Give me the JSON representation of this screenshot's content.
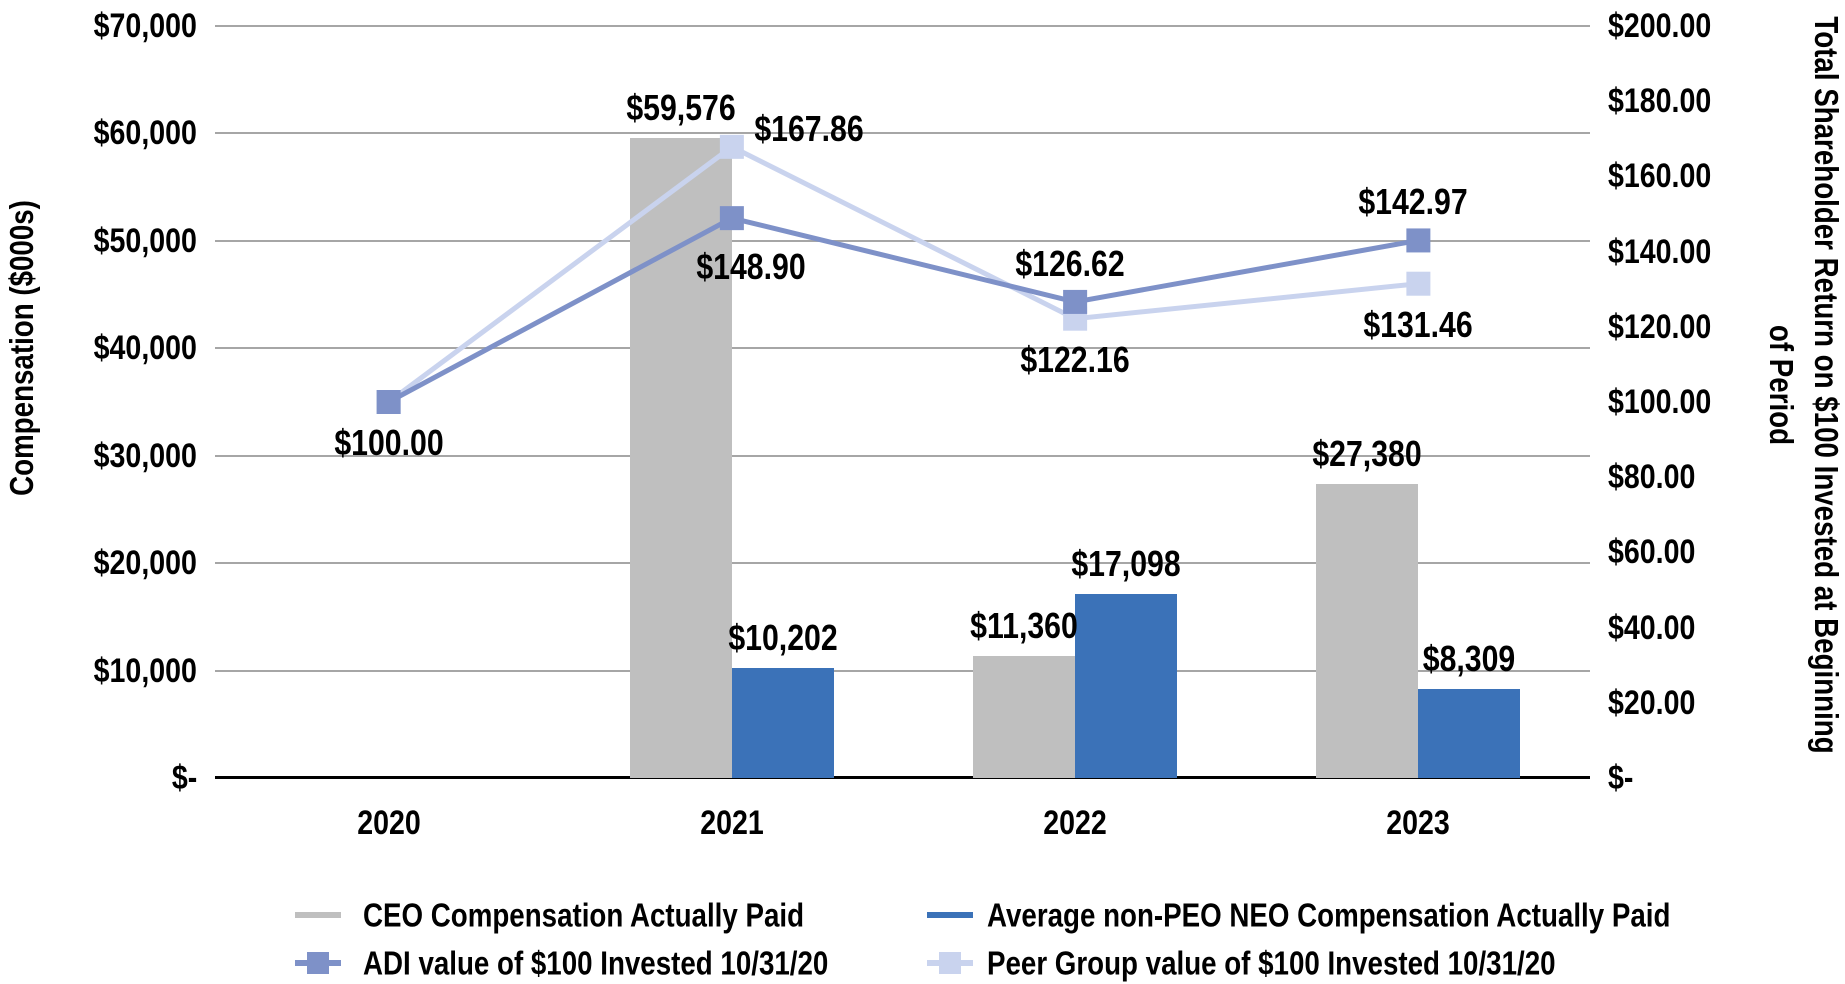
{
  "chart_data": {
    "type": "combo-bar-line",
    "categories": [
      "2020",
      "2021",
      "2022",
      "2023"
    ],
    "bar_series": [
      {
        "name": "CEO Compensation Actually Paid",
        "color": "#BFBFBF",
        "values": [
          null,
          59576,
          11360,
          27380
        ],
        "labels": [
          "",
          "$59,576",
          "$11,360",
          "$27,380"
        ]
      },
      {
        "name": "Average non-PEO NEO Compensation Actually Paid",
        "color": "#3B72B8",
        "values": [
          null,
          10202,
          17098,
          8309
        ],
        "labels": [
          "",
          "$10,202",
          "$17,098",
          "$8,309"
        ]
      }
    ],
    "line_series": [
      {
        "name": "Peer Group value of $100 Invested 10/31/20",
        "color": "#C9D3EE",
        "values": [
          100.0,
          167.86,
          122.16,
          131.46
        ],
        "labels": [
          "",
          "$167.86",
          "$122.16",
          "$131.46"
        ],
        "label_pos": [
          null,
          "above-right",
          "below",
          "below"
        ]
      },
      {
        "name": "ADI value of $100 Invested 10/31/20",
        "color": "#7E91C8",
        "values": [
          100.0,
          148.9,
          126.62,
          142.97
        ],
        "labels": [
          "$100.00",
          "$148.90",
          "$126.62",
          "$142.97"
        ],
        "label_pos": [
          "below",
          "below-right",
          "above",
          "above"
        ]
      }
    ],
    "left_axis": {
      "title": "Compensation ($000s)",
      "max": 70000,
      "step": 10000,
      "ticks": [
        "$70,000",
        "$60,000",
        "$50,000",
        "$40,000",
        "$30,000",
        "$20,000",
        "$10,000",
        "$-"
      ]
    },
    "right_axis": {
      "title_line1": "Total Shareholder Return on $100 Invested at Beginning",
      "title_line2": "of Period",
      "max": 200,
      "step": 20,
      "ticks": [
        "$200.00",
        "$180.00",
        "$160.00",
        "$140.00",
        "$120.00",
        "$100.00",
        "$80.00",
        "$60.00",
        "$40.00",
        "$20.00",
        "$-"
      ]
    },
    "legend": {
      "items": [
        {
          "label": "CEO Compensation Actually Paid",
          "swatch": "dash",
          "color": "#BFBFBF"
        },
        {
          "label": "Average non-PEO NEO Compensation Actually Paid",
          "swatch": "dash",
          "color": "#3B72B8"
        },
        {
          "label": "ADI value of $100 Invested 10/31/20",
          "swatch": "marker",
          "color": "#7E91C8"
        },
        {
          "label": "Peer Group value of $100 Invested 10/31/20",
          "swatch": "marker",
          "color": "#C9D3EE"
        }
      ]
    },
    "style_colors": {
      "gridline": "#A6A6A6",
      "axis_line": "#000000",
      "label_text": "#000000",
      "background": "#FFFFFF"
    },
    "layout_hints": {
      "grid": "horizontal-major-left-axis",
      "legend_position": "bottom-two-columns"
    }
  }
}
